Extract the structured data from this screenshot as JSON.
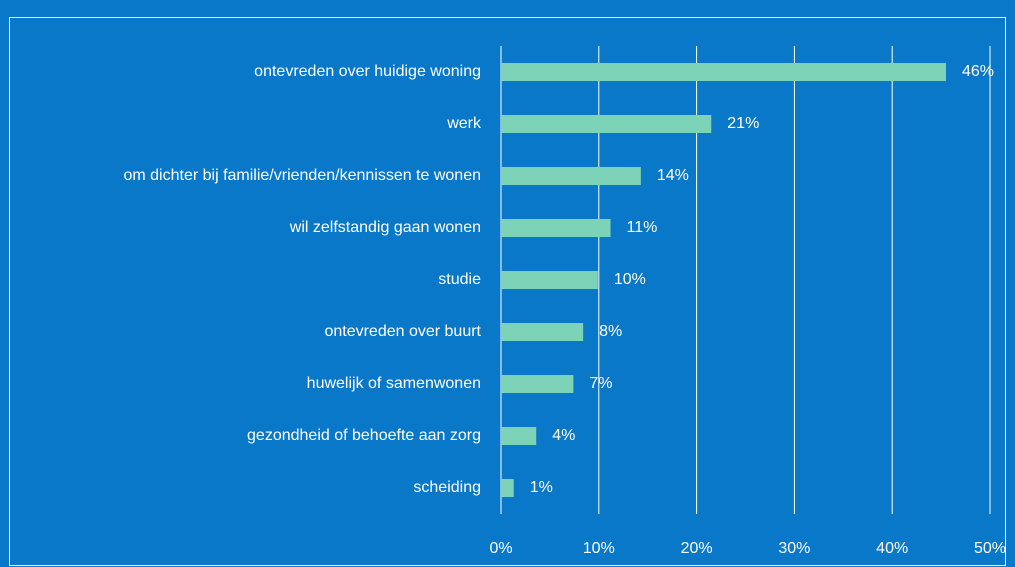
{
  "chart_data": {
    "type": "bar",
    "categories": [
      "ontevreden over huidige woning",
      "werk",
      "om dichter bij familie/vrienden/kennissen te wonen",
      "wil zelfstandig gaan wonen",
      "studie",
      "ontevreden over buurt",
      "huwelijk of samenwonen",
      "gezondheid of behoefte aan zorg",
      "scheiding"
    ],
    "values": [
      45.5,
      21.5,
      14.3,
      11.2,
      9.9,
      8.4,
      7.4,
      3.6,
      1.3
    ],
    "value_labels": [
      "46%",
      "21%",
      "14%",
      "11%",
      "10%",
      "8%",
      "7%",
      "4%",
      "1%"
    ],
    "color": "#7dd3b8",
    "xlim": [
      0,
      50
    ],
    "xticks": [
      {
        "value": 0,
        "label": "0%"
      },
      {
        "value": 10,
        "label": "10%"
      },
      {
        "value": 20,
        "label": "20%"
      },
      {
        "value": 30,
        "label": "30%"
      },
      {
        "value": 40,
        "label": "40%"
      },
      {
        "value": 50,
        "label": "50%"
      }
    ],
    "grid": true
  }
}
